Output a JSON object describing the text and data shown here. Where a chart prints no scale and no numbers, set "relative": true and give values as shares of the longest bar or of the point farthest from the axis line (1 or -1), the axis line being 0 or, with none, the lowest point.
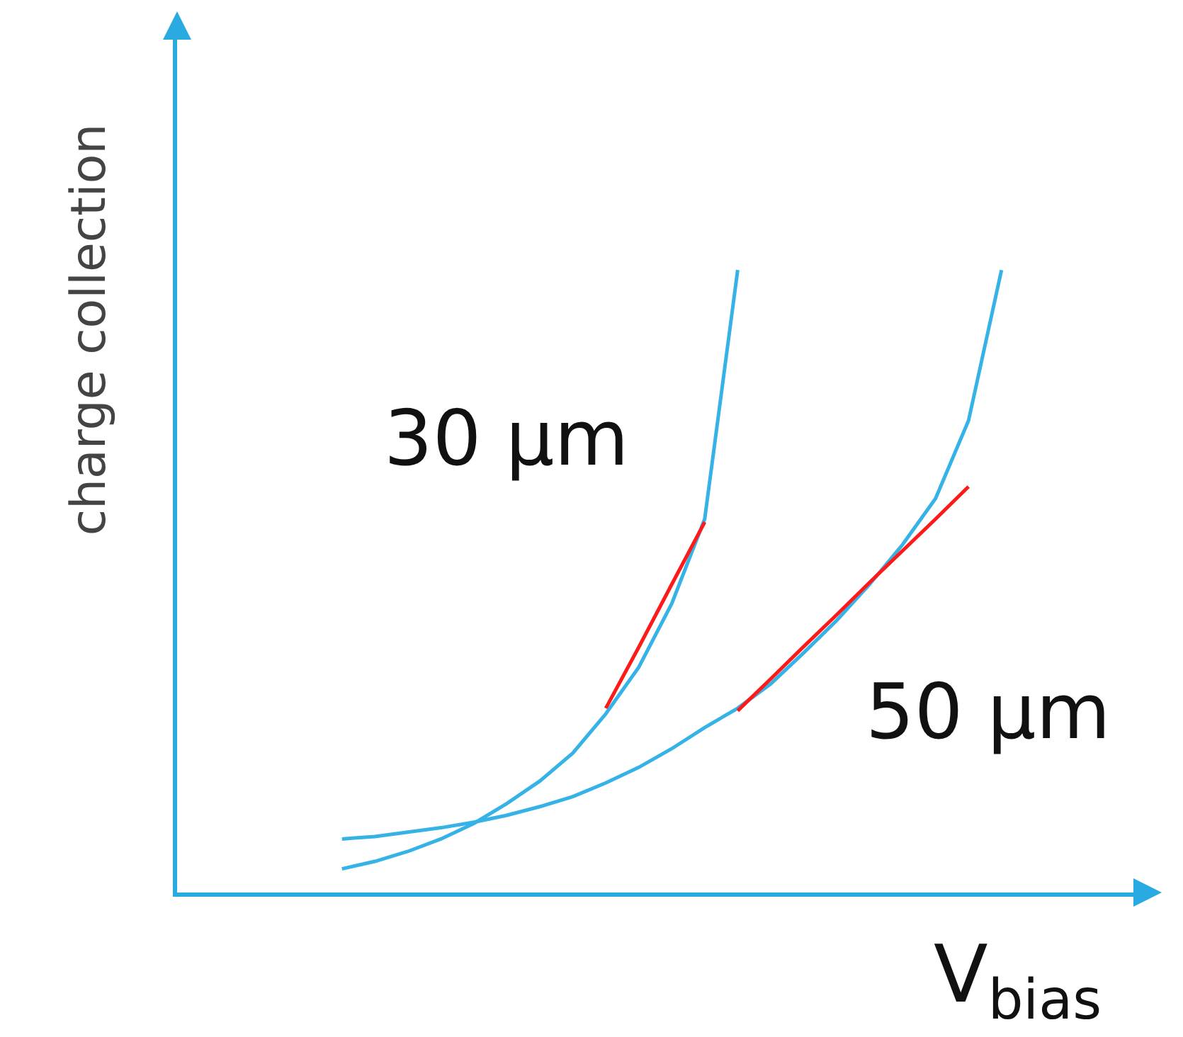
{
  "chart_data": {
    "type": "line",
    "relative": true,
    "ylabel": "charge collection",
    "xlabel": "V$_{bias}$",
    "grid": false,
    "legend": false,
    "tick_labels": false,
    "marker": "none",
    "line_style": "solid",
    "categories": [
      null,
      null,
      null,
      null,
      null,
      null,
      null,
      null,
      null,
      null,
      null,
      null,
      null,
      null,
      null,
      null,
      null,
      null,
      null,
      null,
      null,
      null,
      null,
      null,
      null,
      null,
      null,
      null,
      null,
      null
    ],
    "series": [
      {
        "name": "30 µm",
        "color": "#35b2e6",
        "values": [
          null,
          null,
          null,
          null,
          null,
          0.038,
          0.05,
          0.066,
          0.086,
          0.111,
          0.143,
          0.179,
          0.224,
          0.287,
          0.362,
          0.464,
          0.6,
          1.0,
          null,
          null,
          null,
          null,
          null,
          null,
          null,
          null,
          null,
          null,
          null,
          null
        ]
      },
      {
        "name": "50 µm",
        "color": "#35b2e6",
        "values": [
          null,
          null,
          null,
          null,
          null,
          0.086,
          0.09,
          0.097,
          0.104,
          0.113,
          0.124,
          0.138,
          0.154,
          0.176,
          0.201,
          0.231,
          0.265,
          0.296,
          0.335,
          0.385,
          0.437,
          0.495,
          0.559,
          0.633,
          0.758,
          1.0,
          null,
          null,
          null,
          null
        ]
      },
      {
        "color": "#ff1a1a",
        "values": [
          null,
          null,
          null,
          null,
          null,
          null,
          null,
          null,
          null,
          null,
          null,
          null,
          null,
          0.296,
          0.394,
          0.495,
          0.595,
          null,
          null,
          null,
          null,
          null,
          null,
          null,
          null,
          null,
          null,
          null,
          null,
          null
        ]
      },
      {
        "color": "#ff1a1a",
        "values": [
          null,
          null,
          null,
          null,
          null,
          null,
          null,
          null,
          null,
          null,
          null,
          null,
          null,
          null,
          null,
          null,
          null,
          0.292,
          0.343,
          0.395,
          0.446,
          0.498,
          0.549,
          0.6,
          0.652,
          null,
          null,
          null,
          null,
          null
        ]
      }
    ]
  }
}
